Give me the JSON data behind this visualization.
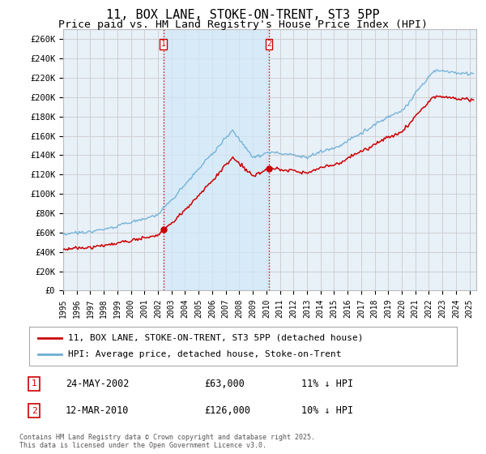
{
  "title": "11, BOX LANE, STOKE-ON-TRENT, ST3 5PP",
  "subtitle": "Price paid vs. HM Land Registry's House Price Index (HPI)",
  "title_fontsize": 11,
  "subtitle_fontsize": 9.5,
  "ylabel_ticks": [
    "£0",
    "£20K",
    "£40K",
    "£60K",
    "£80K",
    "£100K",
    "£120K",
    "£140K",
    "£160K",
    "£180K",
    "£200K",
    "£220K",
    "£240K",
    "£260K"
  ],
  "ytick_values": [
    0,
    20000,
    40000,
    60000,
    80000,
    100000,
    120000,
    140000,
    160000,
    180000,
    200000,
    220000,
    240000,
    260000
  ],
  "ylim": [
    0,
    270000
  ],
  "sale1_date_num": 2002.39,
  "sale1_price": 63000,
  "sale1_label": "1",
  "sale1_date_str": "24-MAY-2002",
  "sale1_hpi_pct": "11% ↓ HPI",
  "sale2_date_num": 2010.19,
  "sale2_price": 126000,
  "sale2_label": "2",
  "sale2_date_str": "12-MAR-2010",
  "sale2_hpi_pct": "10% ↓ HPI",
  "hpi_line_color": "#6baed6",
  "sale_line_color": "#cc0000",
  "vline_color": "#cc0000",
  "vline_style": ":",
  "shade_color": "#d0e8f8",
  "grid_color": "#cccccc",
  "bg_color": "#e8f0f8",
  "legend1_label": "11, BOX LANE, STOKE-ON-TRENT, ST3 5PP (detached house)",
  "legend2_label": "HPI: Average price, detached house, Stoke-on-Trent",
  "footnote": "Contains HM Land Registry data © Crown copyright and database right 2025.\nThis data is licensed under the Open Government Licence v3.0.",
  "xmin": 1995.0,
  "xmax": 2025.5
}
